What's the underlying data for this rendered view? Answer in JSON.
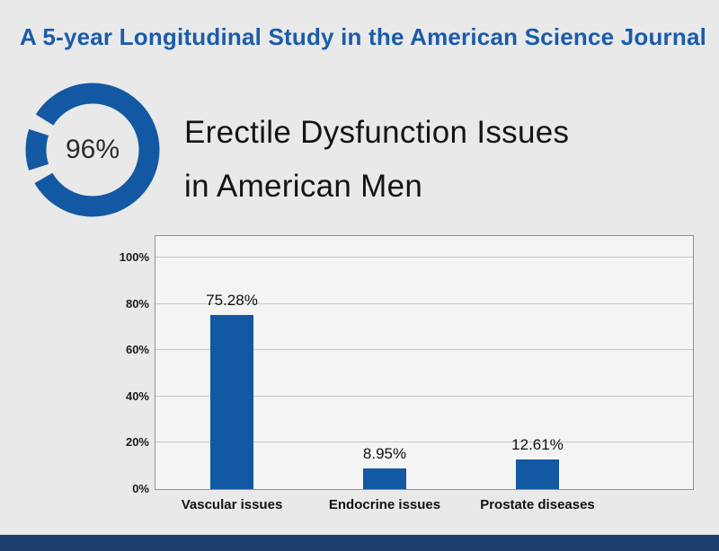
{
  "page": {
    "background": "#e9e9e9",
    "footer_color": "#1c3e6e"
  },
  "header": {
    "title": "A 5-year Longitudinal Study in the American Science Journal",
    "color": "#1a5cab"
  },
  "stat": {
    "value": "96%",
    "ring_color": "#1358a2"
  },
  "headline": {
    "line1": "Erectile Dysfunction Issues",
    "line2": "in American Men"
  },
  "chart_data": {
    "type": "bar",
    "title": "Erectile Dysfunction Issues in American Men",
    "categories": [
      "Vascular issues",
      "Endocrine issues",
      "Prostate diseases"
    ],
    "values": [
      75.28,
      8.95,
      12.61
    ],
    "value_labels": [
      "75.28%",
      "8.95%",
      "12.61%"
    ],
    "y_ticks": [
      0,
      20,
      40,
      60,
      80,
      100
    ],
    "y_tick_labels": [
      "0%",
      "20%",
      "40%",
      "60%",
      "80%",
      "100%"
    ],
    "ylim": [
      0,
      100
    ],
    "bar_color": "#1358a2",
    "grid": true,
    "legend": false
  }
}
